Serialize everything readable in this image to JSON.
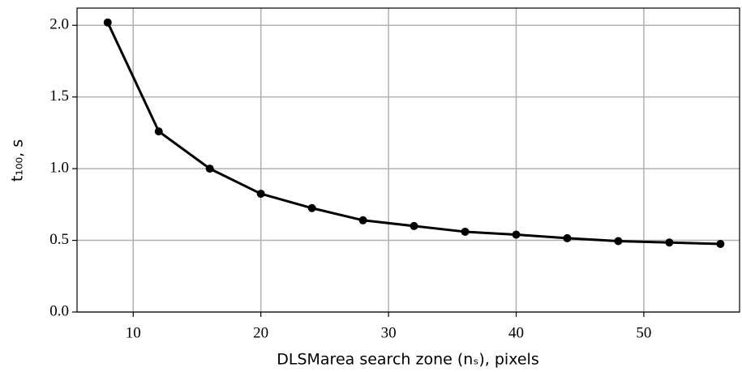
{
  "chart_data": {
    "type": "line",
    "x_label": "DLSMarea search zone (nₛ), pixels",
    "y_label": "t₁₀₀, s",
    "x": [
      8,
      12,
      16,
      20,
      24,
      28,
      32,
      36,
      40,
      44,
      48,
      52,
      56
    ],
    "series": [
      {
        "color": "#000000",
        "values": [
          2.02,
          1.26,
          1.0,
          0.825,
          0.725,
          0.64,
          0.6,
          0.56,
          0.54,
          0.515,
          0.495,
          0.485,
          0.475
        ]
      }
    ],
    "xlim": [
      5.6,
      57.5
    ],
    "ylim": [
      0,
      2.12
    ],
    "xticks": [
      10,
      20,
      30,
      40,
      50
    ],
    "yticks": [
      {
        "value": 0,
        "label": "0.0"
      },
      0.5,
      {
        "value": 1,
        "label": "1.0"
      },
      1.5,
      {
        "value": 2,
        "label": "2.0"
      }
    ],
    "grid": true
  }
}
